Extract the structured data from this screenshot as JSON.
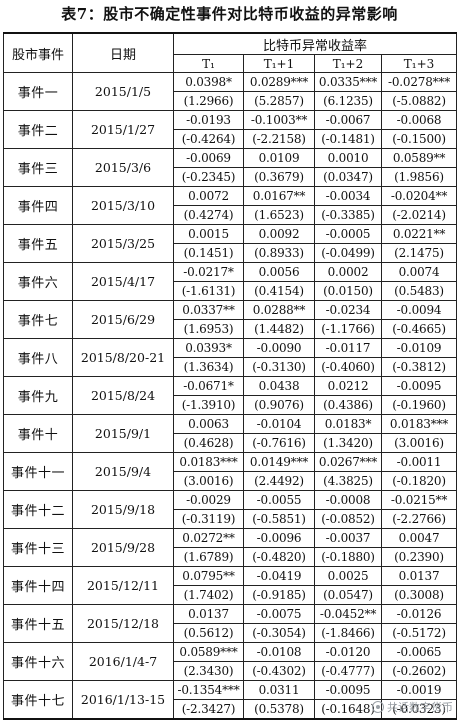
{
  "title": "表7：股市不确定性事件对比特币收益的异常影响",
  "header": {
    "event": "股市事件",
    "date": "日期",
    "group": "比特币异常收益率",
    "subcols": [
      "T₁",
      "T₁+1",
      "T₁+2",
      "T₁+3"
    ]
  },
  "rows": [
    {
      "event": "事件一",
      "date": "2015/1/5",
      "values": [
        "0.0398*",
        "0.0289***",
        "0.0335***",
        "-0.0278***"
      ],
      "tstats": [
        "(1.2966)",
        "(5.2857)",
        "(6.1235)",
        "(-5.0882)"
      ]
    },
    {
      "event": "事件二",
      "date": "2015/1/27",
      "values": [
        "-0.0193",
        "-0.1003**",
        "-0.0067",
        "-0.0068"
      ],
      "tstats": [
        "(-0.4264)",
        "(-2.2158)",
        "(-0.1481)",
        "(-0.1500)"
      ]
    },
    {
      "event": "事件三",
      "date": "2015/3/6",
      "values": [
        "-0.0069",
        "0.0109",
        "0.0010",
        "0.0589**"
      ],
      "tstats": [
        "(-0.2345)",
        "(0.3679)",
        "(0.0347)",
        "(1.9856)"
      ]
    },
    {
      "event": "事件四",
      "date": "2015/3/10",
      "values": [
        "0.0072",
        "0.0167**",
        "-0.0034",
        "-0.0204**"
      ],
      "tstats": [
        "(0.4274)",
        "(1.6523)",
        "(-0.3385)",
        "(-2.0214)"
      ]
    },
    {
      "event": "事件五",
      "date": "2015/3/25",
      "values": [
        "0.0015",
        "0.0092",
        "-0.0005",
        "0.0221**"
      ],
      "tstats": [
        "(0.1451)",
        "(0.8933)",
        "(-0.0499)",
        "(2.1475)"
      ]
    },
    {
      "event": "事件六",
      "date": "2015/4/17",
      "values": [
        "-0.0217*",
        "0.0056",
        "0.0002",
        "0.0074"
      ],
      "tstats": [
        "(-1.6131)",
        "(0.4154)",
        "(0.0150)",
        "(0.5483)"
      ]
    },
    {
      "event": "事件七",
      "date": "2015/6/29",
      "values": [
        "0.0337**",
        "0.0288**",
        "-0.0234",
        "-0.0094"
      ],
      "tstats": [
        "(1.6953)",
        "(1.4482)",
        "(-1.1766)",
        "(-0.4665)"
      ]
    },
    {
      "event": "事件八",
      "date": "2015/8/20-21",
      "values": [
        "0.0393*",
        "-0.0090",
        "-0.0117",
        "-0.0109"
      ],
      "tstats": [
        "(1.3634)",
        "(-0.3130)",
        "(-0.4060)",
        "(-0.3812)"
      ]
    },
    {
      "event": "事件九",
      "date": "2015/8/24",
      "values": [
        "-0.0671*",
        "0.0438",
        "0.0212",
        "-0.0095"
      ],
      "tstats": [
        "(-1.3910)",
        "(0.9076)",
        "(0.4386)",
        "(-0.1960)"
      ]
    },
    {
      "event": "事件十",
      "date": "2015/9/1",
      "values": [
        "0.0063",
        "-0.0104",
        "0.0183*",
        "0.0183***"
      ],
      "tstats": [
        "(0.4628)",
        "(-0.7616)",
        "(1.3420)",
        "(3.0016)"
      ]
    },
    {
      "event": "事件十一",
      "date": "2015/9/4",
      "values": [
        "0.0183***",
        "0.0149***",
        "0.0267***",
        "-0.0011"
      ],
      "tstats": [
        "(3.0016)",
        "(2.4492)",
        "(4.3825)",
        "(-0.1820)"
      ]
    },
    {
      "event": "事件十二",
      "date": "2015/9/18",
      "values": [
        "-0.0029",
        "-0.0055",
        "-0.0008",
        "-0.0215**"
      ],
      "tstats": [
        "(-0.3119)",
        "(-0.5851)",
        "(-0.0852)",
        "(-2.2766)"
      ]
    },
    {
      "event": "事件十三",
      "date": "2015/9/28",
      "values": [
        "0.0272**",
        "-0.0096",
        "-0.0037",
        "0.0047"
      ],
      "tstats": [
        "(1.6789)",
        "(-0.4820)",
        "(-0.1880)",
        "(0.2390)"
      ]
    },
    {
      "event": "事件十四",
      "date": "2015/12/11",
      "values": [
        "0.0795**",
        "-0.0419",
        "0.0025",
        "0.0137"
      ],
      "tstats": [
        "(1.7402)",
        "(-0.9185)",
        "(0.0547)",
        "(0.3008)"
      ]
    },
    {
      "event": "事件十五",
      "date": "2015/12/18",
      "values": [
        "0.0137",
        "-0.0075",
        "-0.0452**",
        "-0.0126"
      ],
      "tstats": [
        "(0.5612)",
        "(-0.3054)",
        "(-1.8466)",
        "(-0.5172)"
      ]
    },
    {
      "event": "事件十六",
      "date": "2016/1/4-7",
      "values": [
        "0.0589***",
        "-0.0108",
        "-0.0120",
        "-0.0065"
      ],
      "tstats": [
        "(2.3430)",
        "(-0.4302)",
        "(-0.4777)",
        "(-0.2602)"
      ]
    },
    {
      "event": "事件十七",
      "date": "2016/1/13-15",
      "values": [
        "-0.1354***",
        "0.0311",
        "-0.0095",
        "-0.0019"
      ],
      "tstats": [
        "(-2.3427)",
        "(0.5378)",
        "(-0.1648)",
        "(-0.0323)"
      ]
    }
  ],
  "watermark": "共话数字货币"
}
